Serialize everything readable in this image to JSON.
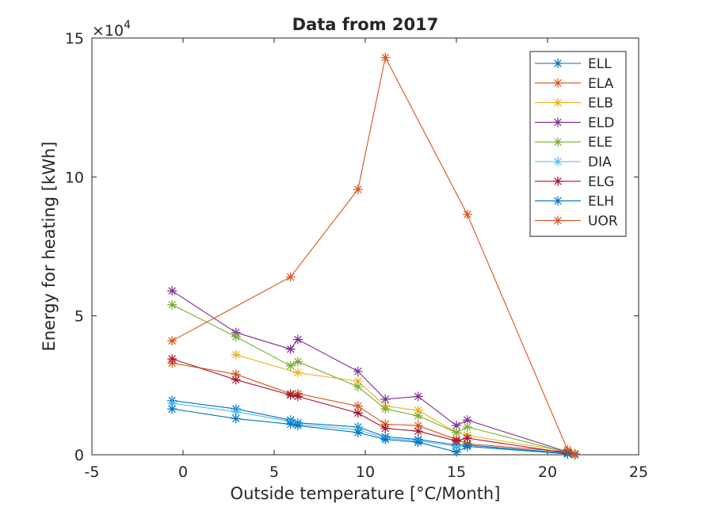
{
  "chart_data": {
    "type": "line",
    "title": "Data from 2017",
    "xlabel": "Outside temperature [°C/Month]",
    "ylabel": "Energy for heating [kWh]",
    "xlim": [
      -5,
      25
    ],
    "ylim": [
      0,
      150000
    ],
    "xticks": [
      -5,
      0,
      5,
      10,
      15,
      20,
      25
    ],
    "xtick_labels": [
      "-5",
      "0",
      "5",
      "10",
      "15",
      "20",
      "25"
    ],
    "yticks": [
      0,
      50000,
      100000,
      150000
    ],
    "ytick_labels": [
      "0",
      "5",
      "10",
      "15"
    ],
    "y_exponent_label": "×10",
    "y_exponent_power": "4",
    "marker": "asterisk",
    "legend_position": "top-right",
    "series": [
      {
        "name": "ELL",
        "color": "#0072BD",
        "x": [
          -0.6,
          2.9,
          5.9,
          6.3,
          9.6,
          11.1,
          12.9,
          15.0,
          15.6,
          21.1,
          21.5
        ],
        "y": [
          19500,
          16500,
          12500,
          11500,
          10000,
          6500,
          5500,
          3500,
          3500,
          500,
          0
        ]
      },
      {
        "name": "ELA",
        "color": "#D95319",
        "x": [
          -0.6,
          2.9,
          5.9,
          6.3,
          9.6,
          11.1,
          12.9,
          15.0,
          15.6,
          21.1,
          21.5
        ],
        "y": [
          33000,
          29000,
          22000,
          22000,
          17500,
          11000,
          10500,
          5500,
          4000,
          1000,
          300
        ]
      },
      {
        "name": "ELB",
        "color": "#EDB120",
        "x": [
          2.9,
          6.3,
          9.6,
          11.1,
          12.9,
          15.0,
          15.6,
          21.1,
          21.5
        ],
        "y": [
          36000,
          29500,
          26500,
          17500,
          16000,
          8000,
          7000,
          1200,
          400
        ]
      },
      {
        "name": "ELD",
        "color": "#7E2F8E",
        "x": [
          -0.6,
          2.9,
          5.9,
          6.3,
          9.6,
          11.1,
          12.9,
          15.0,
          15.6,
          21.1,
          21.5
        ],
        "y": [
          59000,
          44000,
          38000,
          41500,
          30000,
          20000,
          21000,
          10500,
          12500,
          1000,
          300
        ]
      },
      {
        "name": "ELE",
        "color": "#77AC30",
        "x": [
          -0.6,
          2.9,
          5.9,
          6.3,
          9.6,
          11.1,
          12.9,
          15.0,
          15.6,
          21.1,
          21.5
        ],
        "y": [
          54000,
          42500,
          32000,
          33500,
          24500,
          16500,
          14000,
          8000,
          10000,
          800,
          200
        ]
      },
      {
        "name": "DIA",
        "color": "#4DBEEE",
        "x": [
          -0.6,
          2.9,
          5.9,
          6.3,
          9.6,
          11.1,
          12.9,
          15.0,
          15.6,
          21.1,
          21.5
        ],
        "y": [
          18500,
          15500,
          12000,
          11000,
          9000,
          6000,
          5000,
          3000,
          3000,
          400,
          0
        ]
      },
      {
        "name": "ELG",
        "color": "#A2142F",
        "x": [
          -0.6,
          2.9,
          5.9,
          6.3,
          9.6,
          11.1,
          12.9,
          15.0,
          15.6,
          21.1,
          21.5
        ],
        "y": [
          34500,
          27000,
          21500,
          21000,
          15000,
          9500,
          8500,
          5000,
          6000,
          600,
          100
        ]
      },
      {
        "name": "ELH",
        "color": "#0072BD",
        "x": [
          -0.6,
          2.9,
          5.9,
          6.3,
          9.6,
          11.1,
          12.9,
          15.0,
          15.6,
          21.1,
          21.5
        ],
        "y": [
          16500,
          13000,
          11000,
          10500,
          8000,
          5500,
          4500,
          1000,
          3000,
          300,
          0
        ]
      },
      {
        "name": "UOR",
        "color": "#D95319",
        "x": [
          -0.6,
          5.9,
          9.6,
          11.1,
          15.6,
          21.1,
          21.5
        ],
        "y": [
          41000,
          64000,
          95500,
          143000,
          86500,
          1800,
          200
        ]
      }
    ]
  }
}
